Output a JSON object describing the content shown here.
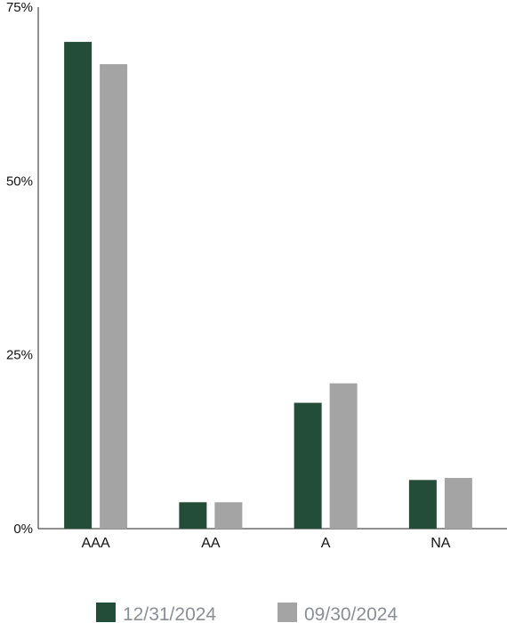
{
  "chart_data": {
    "type": "bar",
    "categories": [
      "AAA",
      "AA",
      "A",
      "NA"
    ],
    "series": [
      {
        "name": "12/31/2024",
        "color": "#234d38",
        "values": [
          70.0,
          3.8,
          18.1,
          7.0
        ]
      },
      {
        "name": "09/30/2024",
        "color": "#a4a4a4",
        "values": [
          66.8,
          3.8,
          20.9,
          7.3
        ]
      }
    ],
    "yticks": [
      "0%",
      "25%",
      "50%",
      "75%"
    ],
    "ytick_values": [
      0,
      25,
      50,
      75
    ],
    "ylim": [
      0,
      75
    ],
    "grid": false,
    "legend_position": "bottom"
  }
}
